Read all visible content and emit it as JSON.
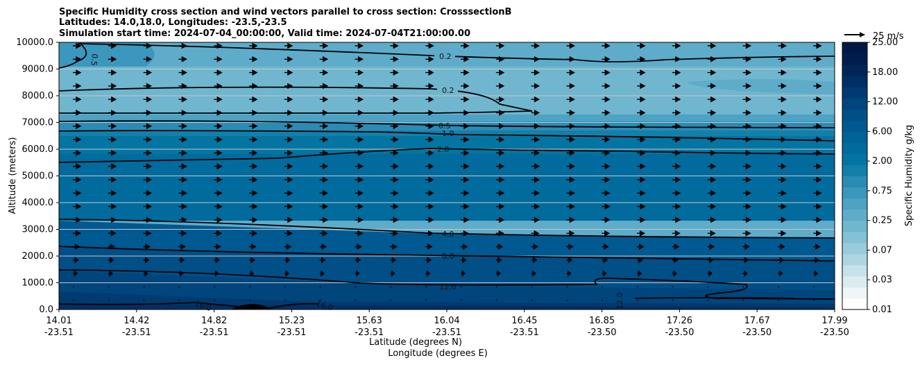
{
  "chart_data": {
    "type": "contourf-cross-section",
    "title_lines": [
      "Specific Humidity cross section and wind vectors parallel to cross section: CrosssectionB",
      "Latitudes: 14.0,18.0, Longitudes: -23.5,-23.5",
      "Simulation start time: 2024-07-04_00:00:00, Valid time: 2024-07-04T21:00:00.00"
    ],
    "ylabel": "Altitude (meters)",
    "xlabel_lat": "Latitude (degrees N)",
    "xlabel_lon": "Longitude (degrees E)",
    "ylim": [
      0,
      10000
    ],
    "y_ticks": [
      "0.0",
      "1000.0",
      "2000.0",
      "3000.0",
      "4000.0",
      "5000.0",
      "6000.0",
      "7000.0",
      "8000.0",
      "9000.0",
      "10000.0"
    ],
    "x_ticks_lat": [
      "14.01",
      "14.42",
      "14.82",
      "15.23",
      "15.63",
      "16.04",
      "16.45",
      "16.85",
      "17.26",
      "17.67",
      "17.99"
    ],
    "x_ticks_lon": [
      "-23.51",
      "-23.51",
      "-23.51",
      "-23.51",
      "-23.51",
      "-23.51",
      "-23.51",
      "-23.50",
      "-23.50",
      "-23.50",
      "-23.50"
    ],
    "colorbar": {
      "label": "Specific Humidity g/kg",
      "tick_labels": [
        "0.01",
        "0.03",
        "0.07",
        "0.25",
        "0.75",
        "2.00",
        "6.00",
        "12.00",
        "18.00",
        "25.00"
      ],
      "colors": [
        "#ffffff",
        "#eef6f8",
        "#dbecf1",
        "#c5e2ea",
        "#add6e2",
        "#98ccdc",
        "#84c1d6",
        "#70b6cf",
        "#5eacca",
        "#4ea2c4",
        "#3b97bd",
        "#2a8cb5",
        "#1380ab",
        "#0475a2",
        "#006b9c",
        "#006296",
        "#005990",
        "#004f87",
        "#00457c",
        "#003a70",
        "#002f64",
        "#002658",
        "#001e4d",
        "#001845"
      ]
    },
    "wind_vector_key": "25 m/s",
    "contour_labels": [
      "0.2",
      "0.2",
      "0.5",
      "0.5",
      "1.0",
      "2.0",
      "4.0",
      "8.0",
      "12.0",
      "12.0",
      "16.0",
      "16.0"
    ],
    "contour_levels_gkg": [
      0.2,
      0.5,
      1.0,
      2.0,
      4.0,
      8.0,
      12.0,
      16.0
    ]
  }
}
